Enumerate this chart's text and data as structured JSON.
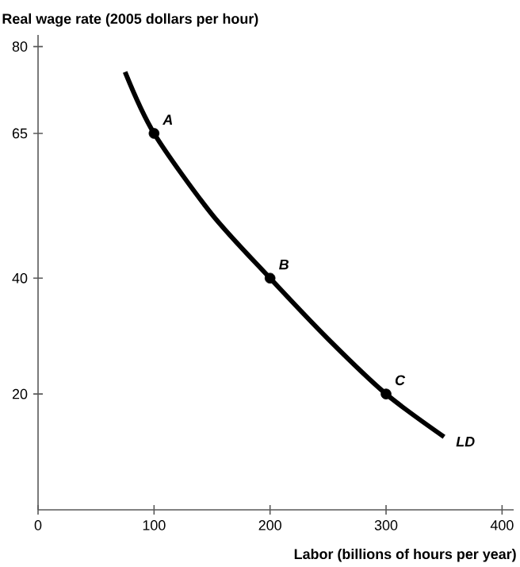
{
  "chart_data": {
    "type": "line",
    "xlabel": "Labor (billions of hours per year)",
    "ylabel": "Real wage rate (2005 dollars per hour)",
    "xlim": [
      0,
      410
    ],
    "ylim": [
      0,
      82
    ],
    "xticks": [
      0,
      100,
      200,
      300,
      400
    ],
    "yticks": [
      20,
      40,
      65,
      80
    ],
    "grid": false,
    "series": [
      {
        "name": "LD",
        "color": "#000000",
        "marker": "none",
        "line_style": "solid",
        "x": [
          75,
          100,
          150,
          200,
          250,
          300,
          350
        ],
        "values": [
          75.6,
          65,
          51,
          40,
          29.5,
          20,
          12.6
        ]
      },
      {
        "color": "#000000",
        "type": "scatter",
        "marker": "circle",
        "x": [
          100,
          200,
          300
        ],
        "values": [
          65,
          40,
          20
        ]
      }
    ],
    "annotations": [
      {
        "text": "A",
        "x": 100,
        "y": 65
      },
      {
        "text": "B",
        "x": 200,
        "y": 40
      },
      {
        "text": "C",
        "x": 300,
        "y": 20
      }
    ]
  }
}
